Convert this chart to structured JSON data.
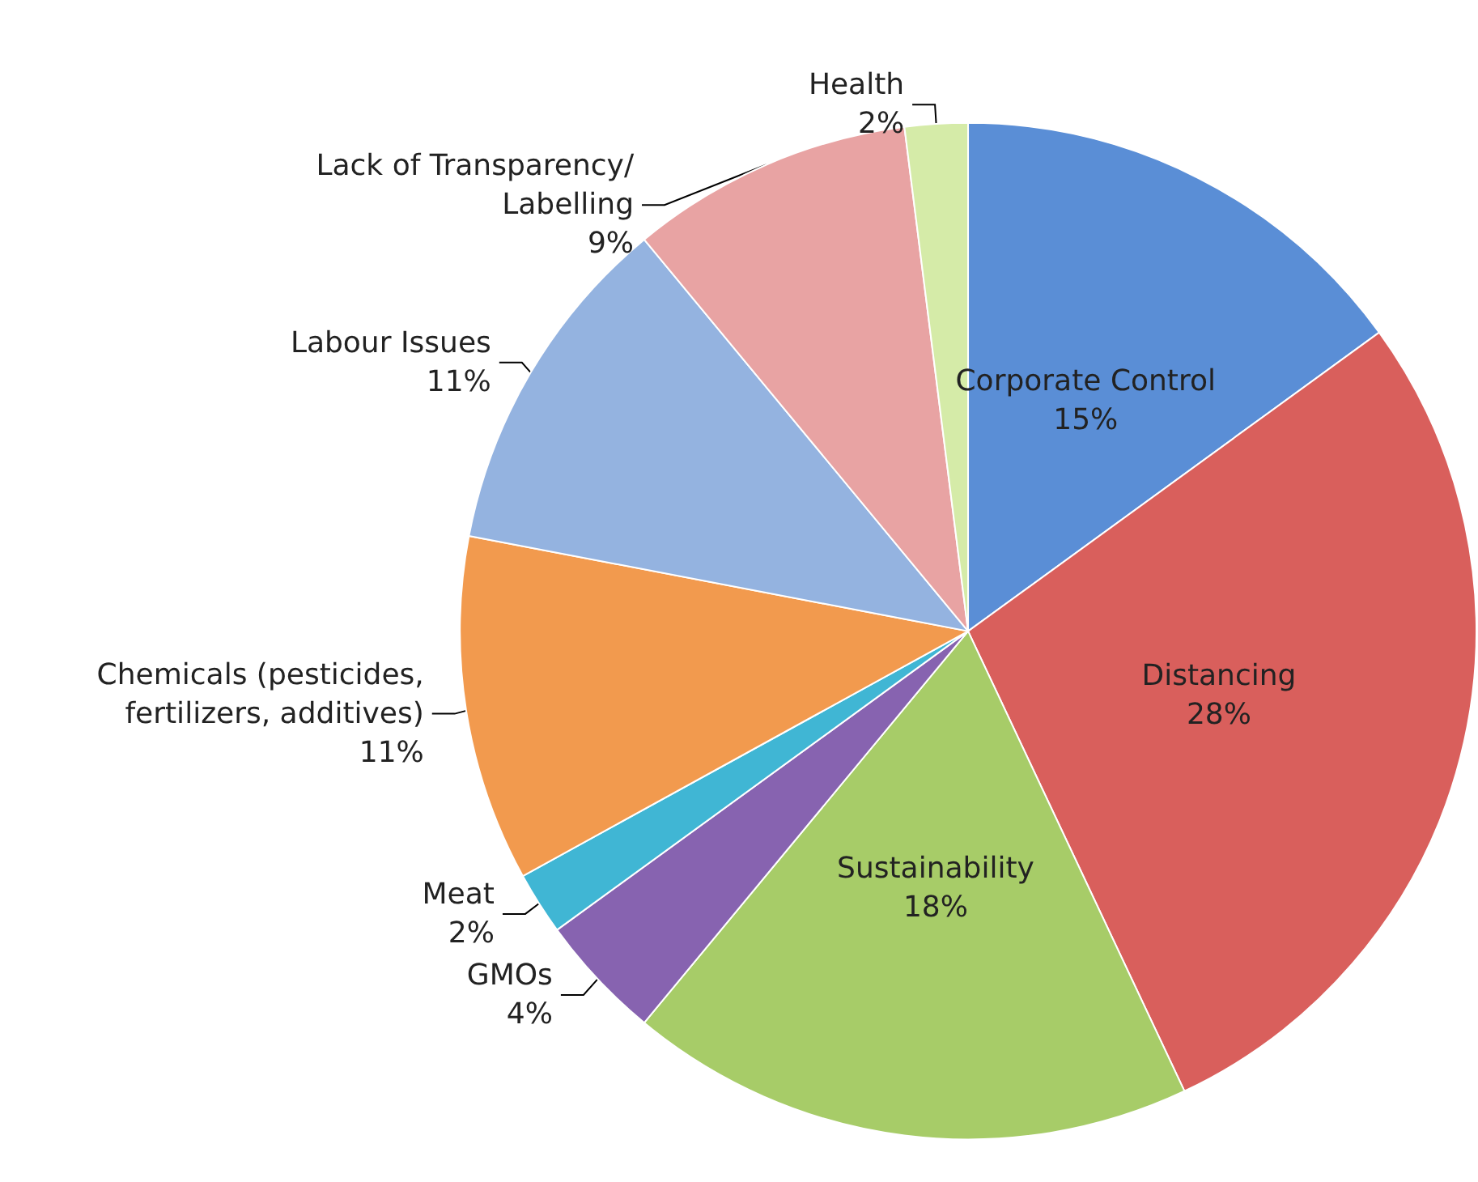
{
  "chart_data": {
    "type": "pie",
    "categories": [
      "Corporate Control",
      "Distancing",
      "Sustainability",
      "GMOs",
      "Meat",
      "Chemicals (pesticides,\nfertilizers, additives)",
      "Labour Issues",
      "Lack of Transparency/\nLabelling",
      "Health"
    ],
    "values": [
      15,
      28,
      18,
      4,
      2,
      11,
      11,
      9,
      2
    ],
    "value_labels": [
      "15%",
      "28%",
      "18%",
      "4%",
      "2%",
      "11%",
      "11%",
      "9%",
      "2%"
    ],
    "colors": [
      "#5a8ed6",
      "#d95f5c",
      "#a7cc68",
      "#8763b0",
      "#40b6d4",
      "#f29a4e",
      "#94b3e0",
      "#e8a3a3",
      "#d5eba8"
    ],
    "legend": false
  }
}
